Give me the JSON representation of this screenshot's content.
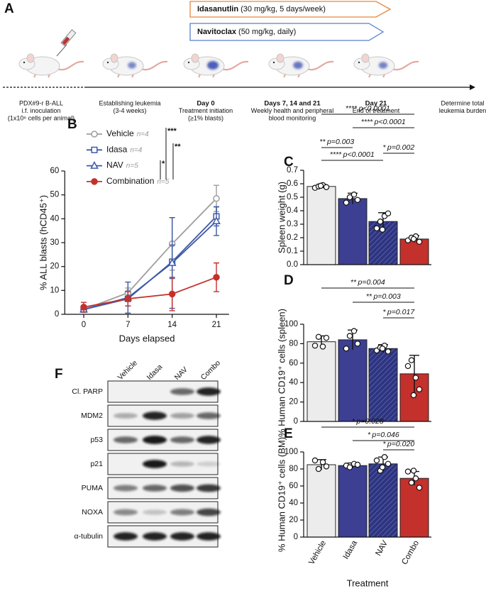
{
  "panel_labels": {
    "a": "A",
    "b": "B",
    "c": "C",
    "d": "D",
    "e": "E",
    "f": "F"
  },
  "schematic": {
    "treatments": [
      {
        "drug": "Idasanutlin",
        "dose": "(30 mg/kg, 5 days/week)"
      },
      {
        "drug": "Navitoclax",
        "dose": "(50 mg/kg, daily)"
      }
    ],
    "steps": [
      {
        "lines": [
          "PDX#9-r B-ALL",
          "i.f. inoculation",
          "(1x10⁶ cells per animal)"
        ]
      },
      {
        "lines": [
          "Establishing leukemia",
          "(3-4 weeks)"
        ]
      },
      {
        "heading": "Day 0",
        "lines": [
          "Treatment initiation",
          "(≥1% blasts)"
        ]
      },
      {
        "heading": "Days 7, 14 and 21",
        "lines": [
          "Weekly health and peripheral",
          "blood monitoring"
        ]
      },
      {
        "heading": "Day 21",
        "lines": [
          "End of treatment"
        ]
      },
      {
        "lines": [
          "Determine total",
          "leukemia burden"
        ]
      }
    ]
  },
  "chart_data": [
    {
      "type": "line",
      "x": [
        0,
        7,
        14,
        21
      ],
      "xlim": [
        -3,
        23
      ],
      "xticks": [
        0,
        7,
        14,
        21
      ],
      "ylim": [
        0,
        60
      ],
      "yticks": [
        0,
        10,
        20,
        30,
        40,
        50,
        60
      ],
      "xlabel": "Days elapsed",
      "ylabel": "% ALL blasts (hCD45⁺)",
      "series": [
        {
          "name": "Vehicle",
          "n_label": "n=4",
          "color": "#9e9e9e",
          "marker": "circle",
          "filled": false,
          "values": [
            2,
            9,
            29.5,
            48.5
          ],
          "errors": [
            1,
            2,
            11,
            5.5
          ]
        },
        {
          "name": "Idasa",
          "n_label": "n=4",
          "color": "#3d5aa8",
          "marker": "square",
          "filled": false,
          "values": [
            2,
            6.5,
            22,
            41
          ],
          "errors": [
            1,
            3,
            7,
            4
          ]
        },
        {
          "name": "NAV",
          "n_label": "n=5",
          "color": "#3d5aa8",
          "marker": "triangle",
          "filled": false,
          "values": [
            2,
            7,
            21.5,
            39
          ],
          "errors": [
            1,
            6.5,
            19,
            6
          ]
        },
        {
          "name": "Combination",
          "n_label": "n=5",
          "color": "#c4302b",
          "marker": "circle",
          "filled": true,
          "values": [
            3,
            6.5,
            8.5,
            15.5
          ],
          "errors": [
            2,
            3,
            7,
            6
          ]
        }
      ],
      "significance": [
        "***",
        "**",
        "*"
      ]
    },
    {
      "type": "bar",
      "values": [
        0.58,
        0.49,
        0.32,
        0.19
      ],
      "errors": [
        0.015,
        0.04,
        0.065,
        0.025
      ],
      "points": [
        [
          0.57,
          0.58,
          0.59,
          0.575,
          0.585
        ],
        [
          0.46,
          0.5,
          0.52,
          0.48
        ],
        [
          0.27,
          0.32,
          0.36,
          0.38,
          0.26
        ],
        [
          0.18,
          0.2,
          0.21,
          0.17,
          0.19
        ]
      ],
      "colors": [
        "#ececec",
        "#3c3f92",
        "#2d3480",
        "#c4302b"
      ],
      "hatched": [
        false,
        false,
        true,
        false
      ],
      "ylim": [
        0,
        0.7
      ],
      "yticks": [
        {
          "value": 0,
          "label": "0.0"
        },
        0.1,
        0.2,
        0.3,
        0.4,
        0.5,
        0.6,
        0.7
      ],
      "ylabel": "Spleen weight (g)",
      "comparisons": [
        {
          "stars": "****",
          "p": "p<0.0001"
        },
        {
          "stars": "****",
          "p": "p<0.0001"
        },
        {
          "stars": "**",
          "p": "p=0.003"
        },
        {
          "stars": "*",
          "p": "p=0.002"
        },
        {
          "stars": "****",
          "p": "p<0.0001"
        }
      ]
    },
    {
      "type": "bar",
      "values": [
        82,
        84,
        75,
        49
      ],
      "errors": [
        6,
        10,
        4,
        19
      ],
      "points": [
        [
          78,
          87,
          77,
          86
        ],
        [
          75,
          88,
          93,
          80
        ],
        [
          73,
          76,
          78,
          72,
          75
        ],
        [
          57,
          63,
          45,
          33,
          27
        ]
      ],
      "colors": [
        "#ececec",
        "#3c3f92",
        "#2d3480",
        "#c4302b"
      ],
      "hatched": [
        false,
        false,
        true,
        false
      ],
      "ylim": [
        0,
        100
      ],
      "yticks": [
        0,
        20,
        40,
        60,
        80,
        100
      ],
      "ylabel": "% Human CD19⁺ cells (spleen)",
      "comparisons": [
        {
          "stars": "**",
          "p": "p=0.004"
        },
        {
          "stars": "**",
          "p": "p=0.003"
        },
        {
          "stars": "*",
          "p": "p=0.017"
        }
      ]
    },
    {
      "type": "bar",
      "categories": [
        "Vehicle",
        "Idasa",
        "NAV",
        "Combo"
      ],
      "values": [
        85,
        84,
        86,
        69
      ],
      "errors": [
        6,
        3,
        8,
        8
      ],
      "points": [
        [
          90,
          80,
          88,
          83
        ],
        [
          84,
          82,
          86,
          85
        ],
        [
          90,
          78,
          94,
          86,
          82
        ],
        [
          77,
          64,
          69,
          58,
          78
        ]
      ],
      "colors": [
        "#ececec",
        "#3c3f92",
        "#2d3480",
        "#c4302b"
      ],
      "hatched": [
        false,
        false,
        true,
        false
      ],
      "ylim": [
        0,
        100
      ],
      "yticks": [
        0,
        20,
        40,
        60,
        80,
        100
      ],
      "ylabel": "% Human CD19⁺ cells (BM)",
      "xlabel": "Treatment",
      "comparisons": [
        {
          "stars": "*",
          "p": "p=0.028"
        },
        {
          "stars": "*",
          "p": "p=0.046"
        },
        {
          "stars": "*",
          "p": "p=0.020"
        }
      ]
    }
  ],
  "blot": {
    "lanes": [
      "Vehicle",
      "Idasa",
      "NAV",
      "Combo"
    ],
    "proteins": [
      "Cl. PARP",
      "MDM2",
      "p53",
      "p21",
      "PUMA",
      "NOXA",
      "α-tubulin"
    ]
  }
}
